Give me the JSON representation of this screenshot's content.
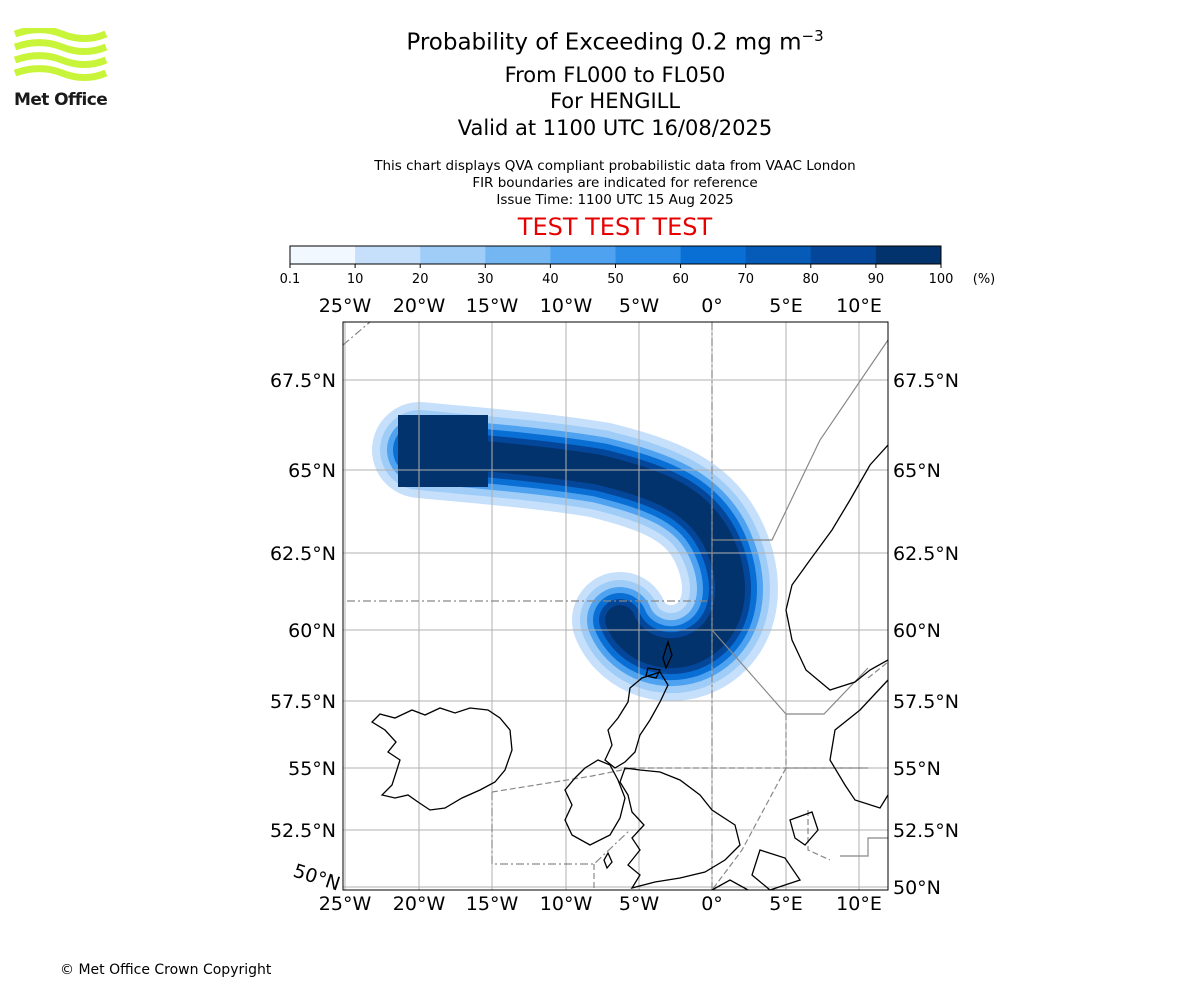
{
  "logo": {
    "text": "Met Office",
    "color": "#c8f53a"
  },
  "title": {
    "line1_main": "Probability of Exceeding 0.2 mg m",
    "line1_sup": "−3",
    "line2": "From FL000 to FL050",
    "line3": "For HENGILL",
    "line4": "Valid at 1100 UTC 16/08/2025"
  },
  "notes": {
    "line1": "This chart displays QVA compliant probabilistic data from VAAC London",
    "line2": "FIR boundaries are indicated for reference",
    "line3": "Issue Time: 1100 UTC 15 Aug 2025"
  },
  "banner": "TEST TEST TEST",
  "colorbar": {
    "ticks": [
      "0.1",
      "10",
      "20",
      "30",
      "40",
      "50",
      "60",
      "70",
      "80",
      "90",
      "100"
    ],
    "unit": "(%)",
    "colors": [
      "#f2f8ff",
      "#c6e0fb",
      "#a0cdf7",
      "#74b6f2",
      "#4ea2ef",
      "#2a8be6",
      "#0a6fd4",
      "#055bb7",
      "#04479a",
      "#03336d"
    ]
  },
  "map": {
    "lon_labels": [
      "25°W",
      "20°W",
      "15°W",
      "10°W",
      "5°W",
      "0°",
      "5°E",
      "10°E"
    ],
    "lat_labels_left": [
      "67.5°N",
      "65°N",
      "62.5°N",
      "60°N",
      "57.5°N",
      "55°N",
      "52.5°N"
    ],
    "lat_labels_right": [
      "67.5°N",
      "65°N",
      "62.5°N",
      "60°N",
      "57.5°N",
      "55°N",
      "52.5°N",
      "50°N"
    ],
    "corner_label": "50°N"
  },
  "copyright": "© Met Office Crown Copyright"
}
